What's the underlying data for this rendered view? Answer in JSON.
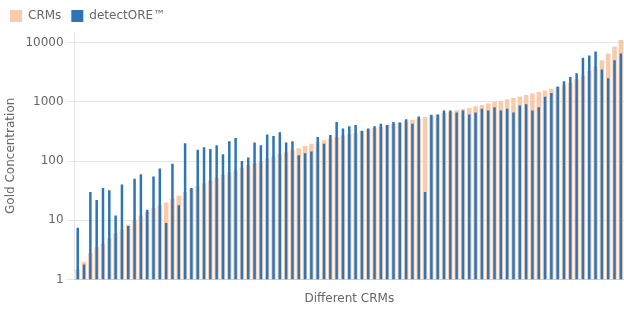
{
  "chart_data": {
    "type": "bar",
    "xlabel": "Different CRMs",
    "ylabel": "Gold Concentration",
    "categories": [
      null,
      null,
      null,
      null,
      null,
      null,
      null,
      null,
      null,
      null,
      null,
      null,
      null,
      null,
      null,
      null,
      null,
      null,
      null,
      null,
      null,
      null,
      null,
      null,
      null,
      null,
      null,
      null,
      null,
      null,
      null,
      null,
      null,
      null,
      null,
      null,
      null,
      null,
      null,
      null,
      null,
      null,
      null,
      null,
      null,
      null,
      null,
      null,
      null,
      null,
      null,
      null,
      null,
      null,
      null,
      null,
      null,
      null,
      null,
      null,
      null,
      null,
      null,
      null,
      null,
      null,
      null,
      null,
      null,
      null,
      null,
      null,
      null,
      null,
      null,
      null,
      null,
      null,
      null,
      null,
      null,
      null,
      null,
      null,
      null,
      null,
      null
    ],
    "series": [
      {
        "name": "CRMs",
        "color": "#F8CBAD",
        "values": [
          1.5,
          2.0,
          2.8,
          3.5,
          4.0,
          5.0,
          6.0,
          7.0,
          8.5,
          10.0,
          12.0,
          14.0,
          16.0,
          18.0,
          20.0,
          23.0,
          26.0,
          30.0,
          34.0,
          38.0,
          42.0,
          47.0,
          52.0,
          58.0,
          64.0,
          70.0,
          77.0,
          85.0,
          93.0,
          100.0,
          110.0,
          120.0,
          130.0,
          140.0,
          155.0,
          165.0,
          180.0,
          195.0,
          210.0,
          225.0,
          240.0,
          255.0,
          270.0,
          285.0,
          300.0,
          320.0,
          340.0,
          360.0,
          380.0,
          400.0,
          420.0,
          445.0,
          470.0,
          495.0,
          520.0,
          550.0,
          580.0,
          610.0,
          645.0,
          680.0,
          715.0,
          755.0,
          795.0,
          840.0,
          885.0,
          935.0,
          985.0,
          1040.0,
          1100.0,
          1160.0,
          1230.0,
          1300.0,
          1380.0,
          1460.0,
          1550.0,
          1650.0,
          1750.0,
          1900.0,
          2100.0,
          2400.0,
          2800.0,
          3300.0,
          4000.0,
          5000.0,
          6500.0,
          8500.0,
          11000.0
        ]
      },
      {
        "name": "detectORE™",
        "color": "#2E75B6",
        "values": [
          7.5,
          1.8,
          30.0,
          22.0,
          35.0,
          32.0,
          12.0,
          40.0,
          8.0,
          50.0,
          60.0,
          15.0,
          55.0,
          75.0,
          9.0,
          90.0,
          18.0,
          200.0,
          35.0,
          155.0,
          170.0,
          160.0,
          185.0,
          130.0,
          215.0,
          245.0,
          100.0,
          115.0,
          205.0,
          185.0,
          280.0,
          265.0,
          305.0,
          205.0,
          215.0,
          125.0,
          135.0,
          145.0,
          255.0,
          195.0,
          275.0,
          455.0,
          355.0,
          385.0,
          405.0,
          325.0,
          355.0,
          385.0,
          425.0,
          405.0,
          455.0,
          445.0,
          505.0,
          425.0,
          565.0,
          30.0,
          605.0,
          610.0,
          710.0,
          710.0,
          660.0,
          710.0,
          610.0,
          660.0,
          760.0,
          710.0,
          810.0,
          710.0,
          760.0,
          660.0,
          860.0,
          910.0,
          710.0,
          810.0,
          1210.0,
          1410.0,
          1810.0,
          2210.0,
          2610.0,
          3010.0,
          5510.0,
          6010.0,
          7000.0,
          3500.0,
          2500.0,
          5000.0,
          6500.0
        ]
      }
    ],
    "log": "y",
    "ylim": [
      1,
      15000
    ],
    "yticks": [
      1,
      10,
      100,
      1000,
      10000
    ],
    "grid": true,
    "legend": "upper left",
    "tick_labels": "y"
  }
}
